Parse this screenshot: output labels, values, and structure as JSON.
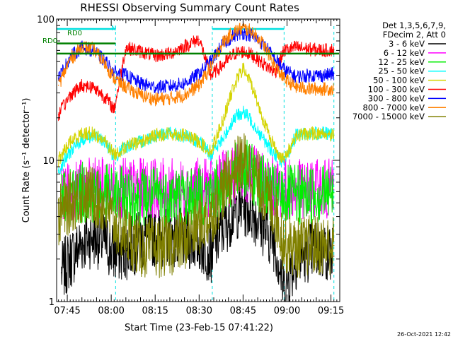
{
  "chart_data": {
    "type": "line",
    "title": "RHESSI Observing Summary Count Rates",
    "xlabel": "Start Time (23-Feb-15 07:41:22)",
    "ylabel": "Count Rate (s⁻¹ detector⁻¹)",
    "y_scale": "log",
    "ylim": [
      1,
      100
    ],
    "y_ticks": [
      1,
      10,
      100
    ],
    "x_range": [
      "07:41:22",
      "09:18:00"
    ],
    "x_ticks": [
      "07:45",
      "08:00",
      "08:15",
      "08:30",
      "08:45",
      "09:00",
      "09:15"
    ],
    "timestamp": "26-Oct-2021 12:42",
    "legend": {
      "placement": "right",
      "header": [
        "Det 1,3,5,6,7,9,",
        "FDecim 2, Att 0"
      ]
    },
    "annotations": {
      "rd0": "RD0",
      "n": "N",
      "rd0_top": "RD0"
    },
    "night_intervals": [
      [
        "07:41:22",
        "08:01:30"
      ],
      [
        "08:34:30",
        "08:59:00"
      ]
    ],
    "saa_marks": [
      "08:01:30",
      "08:34:30",
      "08:59:00",
      "09:16:00"
    ],
    "series": [
      {
        "name": "3 - 6 keV",
        "color": "#000000",
        "x": [
          "07:43",
          "07:46",
          "07:50",
          "07:54",
          "07:58",
          "08:01",
          "08:05",
          "08:10",
          "08:15",
          "08:20",
          "08:25",
          "08:30",
          "08:34",
          "08:38",
          "08:42",
          "08:45",
          "08:48",
          "08:52",
          "08:56",
          "08:59",
          "09:03",
          "09:08",
          "09:13",
          "09:16"
        ],
        "values": [
          1.6,
          2.0,
          2.6,
          2.9,
          2.6,
          2.2,
          2.3,
          2.7,
          2.9,
          2.9,
          2.8,
          2.6,
          2.2,
          3.3,
          4.4,
          4.7,
          4.4,
          3.4,
          2.6,
          1.2,
          2.0,
          2.3,
          2.3,
          2.1
        ]
      },
      {
        "name": "6 - 12 keV",
        "color": "#ff00ff",
        "x": [
          "07:43",
          "07:50",
          "07:58",
          "08:05",
          "08:15",
          "08:25",
          "08:34",
          "08:40",
          "08:45",
          "08:50",
          "08:56",
          "09:03",
          "09:10",
          "09:16"
        ],
        "values": [
          6.2,
          6.3,
          6.4,
          6.3,
          6.3,
          6.2,
          6.4,
          7.5,
          8.6,
          7.6,
          6.4,
          6.2,
          6.2,
          6.2
        ]
      },
      {
        "name": "12 - 25 keV",
        "color": "#00ee00",
        "x": [
          "07:43",
          "07:50",
          "07:58",
          "08:05",
          "08:15",
          "08:25",
          "08:34",
          "08:40",
          "08:45",
          "08:50",
          "08:56",
          "09:03",
          "09:10",
          "09:16"
        ],
        "values": [
          5.6,
          5.9,
          5.7,
          5.5,
          5.6,
          5.6,
          5.7,
          7.2,
          9.0,
          7.3,
          5.6,
          5.6,
          5.8,
          5.9
        ]
      },
      {
        "name": "25 - 50 keV",
        "color": "#00ffff",
        "x": [
          "07:42",
          "07:46",
          "07:50",
          "07:54",
          "07:58",
          "08:01",
          "08:05",
          "08:10",
          "08:15",
          "08:20",
          "08:25",
          "08:30",
          "08:34",
          "08:38",
          "08:42",
          "08:45",
          "08:48",
          "08:52",
          "08:56",
          "08:59",
          "09:03",
          "09:08",
          "09:13",
          "09:16"
        ],
        "values": [
          8.5,
          11.5,
          14.0,
          15.0,
          13.5,
          10.5,
          12.5,
          13.5,
          15.0,
          15.5,
          14.8,
          13.5,
          11.0,
          14.0,
          20.0,
          22.0,
          19.0,
          14.0,
          11.0,
          9.5,
          15.0,
          15.5,
          15.5,
          15.0
        ]
      },
      {
        "name": "50 - 100 keV",
        "color": "#d4d400",
        "x": [
          "07:42",
          "07:46",
          "07:50",
          "07:54",
          "07:58",
          "08:01",
          "08:05",
          "08:10",
          "08:15",
          "08:20",
          "08:25",
          "08:30",
          "08:34",
          "08:38",
          "08:42",
          "08:45",
          "08:48",
          "08:52",
          "08:56",
          "08:59",
          "09:03",
          "09:08",
          "09:13",
          "09:16"
        ],
        "values": [
          10.0,
          13.5,
          15.5,
          15.5,
          13.5,
          11.0,
          12.5,
          13.5,
          15.0,
          15.5,
          15.0,
          13.5,
          11.5,
          19.0,
          34.0,
          45.0,
          34.0,
          19.0,
          12.0,
          10.0,
          15.0,
          15.5,
          15.5,
          15.0
        ]
      },
      {
        "name": "100 - 300 keV",
        "color": "#ff0000",
        "x": [
          "07:42",
          "07:46",
          "07:50",
          "07:54",
          "07:58",
          "08:01",
          "08:05",
          "08:10",
          "08:15",
          "08:20",
          "08:25",
          "08:30",
          "08:34",
          "08:38",
          "08:42",
          "08:45",
          "08:48",
          "08:52",
          "08:56",
          "08:59",
          "09:03",
          "09:08",
          "09:13",
          "09:16"
        ],
        "values": [
          21.0,
          29.0,
          34.0,
          33.0,
          28.0,
          23.0,
          63.0,
          59.0,
          55.0,
          57.0,
          64.0,
          72.0,
          40.0,
          47.0,
          57.0,
          59.0,
          56.0,
          48.0,
          42.0,
          60.0,
          63.0,
          61.0,
          60.0,
          61.0
        ]
      },
      {
        "name": "300 - 800 keV",
        "color": "#0000ff",
        "x": [
          "07:42",
          "07:46",
          "07:50",
          "07:54",
          "07:58",
          "08:01",
          "08:05",
          "08:10",
          "08:15",
          "08:20",
          "08:25",
          "08:30",
          "08:34",
          "08:38",
          "08:42",
          "08:45",
          "08:48",
          "08:52",
          "08:56",
          "08:59",
          "09:03",
          "09:08",
          "09:13",
          "09:16"
        ],
        "values": [
          38.0,
          54.0,
          63.0,
          60.0,
          50.0,
          42.0,
          40.0,
          35.0,
          33.0,
          33.5,
          35.0,
          41.0,
          50.0,
          66.0,
          77.0,
          80.0,
          77.0,
          66.0,
          52.0,
          44.0,
          39.0,
          40.0,
          40.0,
          41.0
        ]
      },
      {
        "name": "800 - 7000 keV",
        "color": "#ff8000",
        "x": [
          "07:42",
          "07:46",
          "07:50",
          "07:54",
          "07:58",
          "08:01",
          "08:05",
          "08:10",
          "08:15",
          "08:20",
          "08:25",
          "08:30",
          "08:34",
          "08:38",
          "08:42",
          "08:45",
          "08:48",
          "08:52",
          "08:56",
          "08:59",
          "09:03",
          "09:08",
          "09:13",
          "09:16"
        ],
        "values": [
          34.0,
          52.0,
          64.0,
          61.0,
          48.0,
          38.0,
          33.0,
          29.0,
          27.0,
          27.5,
          29.0,
          34.0,
          46.0,
          68.0,
          82.0,
          86.0,
          82.0,
          66.0,
          46.0,
          38.0,
          33.0,
          32.0,
          32.0,
          32.0
        ]
      },
      {
        "name": "7000 - 15000 keV",
        "color": "#808000",
        "x": [
          "07:42",
          "07:46",
          "07:50",
          "07:54",
          "07:58",
          "08:01",
          "08:05",
          "08:10",
          "08:15",
          "08:20",
          "08:25",
          "08:30",
          "08:34",
          "08:38",
          "08:42",
          "08:45",
          "08:48",
          "08:52",
          "08:56",
          "08:59",
          "09:03",
          "09:08",
          "09:13",
          "09:16"
        ],
        "values": [
          4.0,
          5.0,
          5.7,
          5.6,
          4.6,
          3.6,
          3.0,
          2.4,
          2.4,
          2.5,
          2.7,
          3.5,
          4.0,
          6.2,
          8.6,
          10.0,
          8.6,
          6.0,
          4.2,
          2.6,
          2.4,
          2.5,
          2.5,
          2.5
        ]
      }
    ],
    "attenuator_level": 57,
    "attenuator_color": "#008000"
  }
}
